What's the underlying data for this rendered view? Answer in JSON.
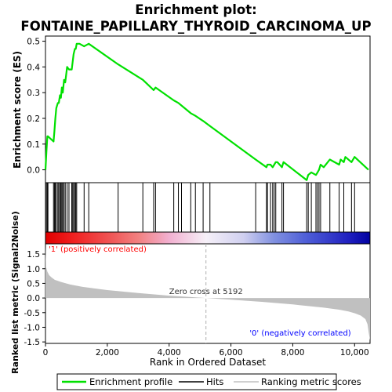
{
  "title_line1": "Enrichment plot:",
  "title_line2": "FONTAINE_PAPILLARY_THYROID_CARCINOMA_UP",
  "colors": {
    "es_line": "#00e000",
    "hit": "#000000",
    "metric_fill": "#c0c0c0",
    "pos_label": "#ff0000",
    "neg_label": "#0000ff",
    "zero_line": "#b0b0b0"
  },
  "chart_data": [
    {
      "type": "line",
      "name": "enrichment-plot",
      "ylabel": "Enrichment score (ES)",
      "xlim": [
        0,
        10500
      ],
      "ylim": [
        -0.05,
        0.52
      ],
      "yticks": [
        0.0,
        0.1,
        0.2,
        0.3,
        0.4,
        0.5
      ],
      "tick_labels": [
        "0.0",
        "0.1",
        "0.2",
        "0.3",
        "0.4",
        "0.5"
      ],
      "series": [
        {
          "name": "Enrichment profile",
          "x": [
            0,
            30,
            60,
            80,
            260,
            290,
            320,
            350,
            400,
            430,
            470,
            500,
            530,
            560,
            600,
            640,
            700,
            760,
            850,
            880,
            910,
            950,
            980,
            1010,
            1100,
            1250,
            1400,
            2350,
            3150,
            3500,
            3560,
            4150,
            4300,
            4400,
            4700,
            4850,
            5100,
            5320,
            6800,
            7150,
            7180,
            7280,
            7350,
            7400,
            7450,
            7500,
            7650,
            7700,
            8450,
            8500,
            8600,
            8750,
            8800,
            8850,
            8900,
            9000,
            9200,
            9500,
            9550,
            9650,
            9700,
            9900,
            10000,
            10450
          ],
          "y": [
            0.0,
            0.07,
            0.13,
            0.13,
            0.11,
            0.15,
            0.2,
            0.24,
            0.26,
            0.26,
            0.29,
            0.28,
            0.32,
            0.3,
            0.35,
            0.34,
            0.4,
            0.39,
            0.39,
            0.42,
            0.45,
            0.47,
            0.47,
            0.49,
            0.49,
            0.48,
            0.49,
            0.41,
            0.35,
            0.31,
            0.32,
            0.27,
            0.26,
            0.25,
            0.22,
            0.21,
            0.19,
            0.17,
            0.04,
            0.01,
            0.02,
            0.02,
            0.01,
            0.02,
            0.03,
            0.03,
            0.01,
            0.03,
            -0.04,
            -0.02,
            -0.01,
            -0.02,
            -0.01,
            0.0,
            0.02,
            0.01,
            0.04,
            0.02,
            0.04,
            0.03,
            0.05,
            0.03,
            0.05,
            0.0
          ]
        }
      ]
    },
    {
      "type": "bar",
      "name": "hits",
      "xlim": [
        0,
        10500
      ],
      "hits": [
        30,
        60,
        80,
        260,
        290,
        320,
        350,
        400,
        430,
        470,
        500,
        530,
        560,
        600,
        640,
        700,
        760,
        850,
        880,
        910,
        950,
        980,
        1010,
        1250,
        1400,
        2350,
        3150,
        3500,
        3560,
        4150,
        4300,
        4400,
        4700,
        4850,
        5100,
        5320,
        6800,
        7150,
        7180,
        7280,
        7350,
        7400,
        7450,
        7650,
        7700,
        8450,
        8500,
        8600,
        8750,
        8800,
        8850,
        8900,
        9200,
        9500,
        9650,
        9900,
        10000
      ]
    },
    {
      "type": "area",
      "name": "ranked-metric",
      "xlabel": "Rank in Ordered Dataset",
      "ylabel": "Ranked list metric (Signal2Noise)",
      "xlim": [
        0,
        10500
      ],
      "ylim": [
        -1.55,
        1.85
      ],
      "xticks": [
        0,
        2000,
        4000,
        6000,
        8000,
        10000
      ],
      "x_tick_labels": [
        "0",
        "2,000",
        "4,000",
        "6,000",
        "8,000",
        "10,000"
      ],
      "yticks": [
        -1.5,
        -1.0,
        -0.5,
        0.0,
        0.5,
        1.0,
        1.5
      ],
      "y_tick_labels": [
        "-1.5",
        "-1.0",
        "-0.5",
        "0.0",
        "0.5",
        "1.0",
        "1.5"
      ],
      "x": [
        0,
        20,
        60,
        120,
        200,
        300,
        500,
        800,
        1200,
        2000,
        3000,
        4000,
        5192,
        6000,
        7000,
        8000,
        9000,
        9500,
        9800,
        10000,
        10200,
        10350,
        10420,
        10460,
        10500
      ],
      "values": [
        1.75,
        1.05,
        0.9,
        0.78,
        0.7,
        0.62,
        0.55,
        0.46,
        0.38,
        0.27,
        0.17,
        0.08,
        0.0,
        -0.06,
        -0.13,
        -0.22,
        -0.33,
        -0.4,
        -0.46,
        -0.52,
        -0.6,
        -0.72,
        -0.9,
        -1.2,
        -1.45
      ],
      "zero_cross": 5192,
      "zero_cross_label": "Zero cross at 5192",
      "pos_label": "'1' (positively correlated)",
      "neg_label": "'0' (negatively correlated)"
    }
  ],
  "heat_band": {
    "stops": [
      {
        "x": 0,
        "color": "#e00000"
      },
      {
        "x": 900,
        "color": "#f02020"
      },
      {
        "x": 2000,
        "color": "#f05050"
      },
      {
        "x": 3000,
        "color": "#f28080"
      },
      {
        "x": 4000,
        "color": "#f2b0d0"
      },
      {
        "x": 5192,
        "color": "#f6f0f8"
      },
      {
        "x": 6400,
        "color": "#d0d0f0"
      },
      {
        "x": 7400,
        "color": "#8090e0"
      },
      {
        "x": 8400,
        "color": "#5060d8"
      },
      {
        "x": 9800,
        "color": "#2020c0"
      },
      {
        "x": 10500,
        "color": "#0000a0"
      }
    ]
  },
  "legend": {
    "items": [
      {
        "label": "Enrichment profile",
        "kind": "es"
      },
      {
        "label": "Hits",
        "kind": "hit"
      },
      {
        "label": "Ranking metric scores",
        "kind": "metric"
      }
    ]
  }
}
